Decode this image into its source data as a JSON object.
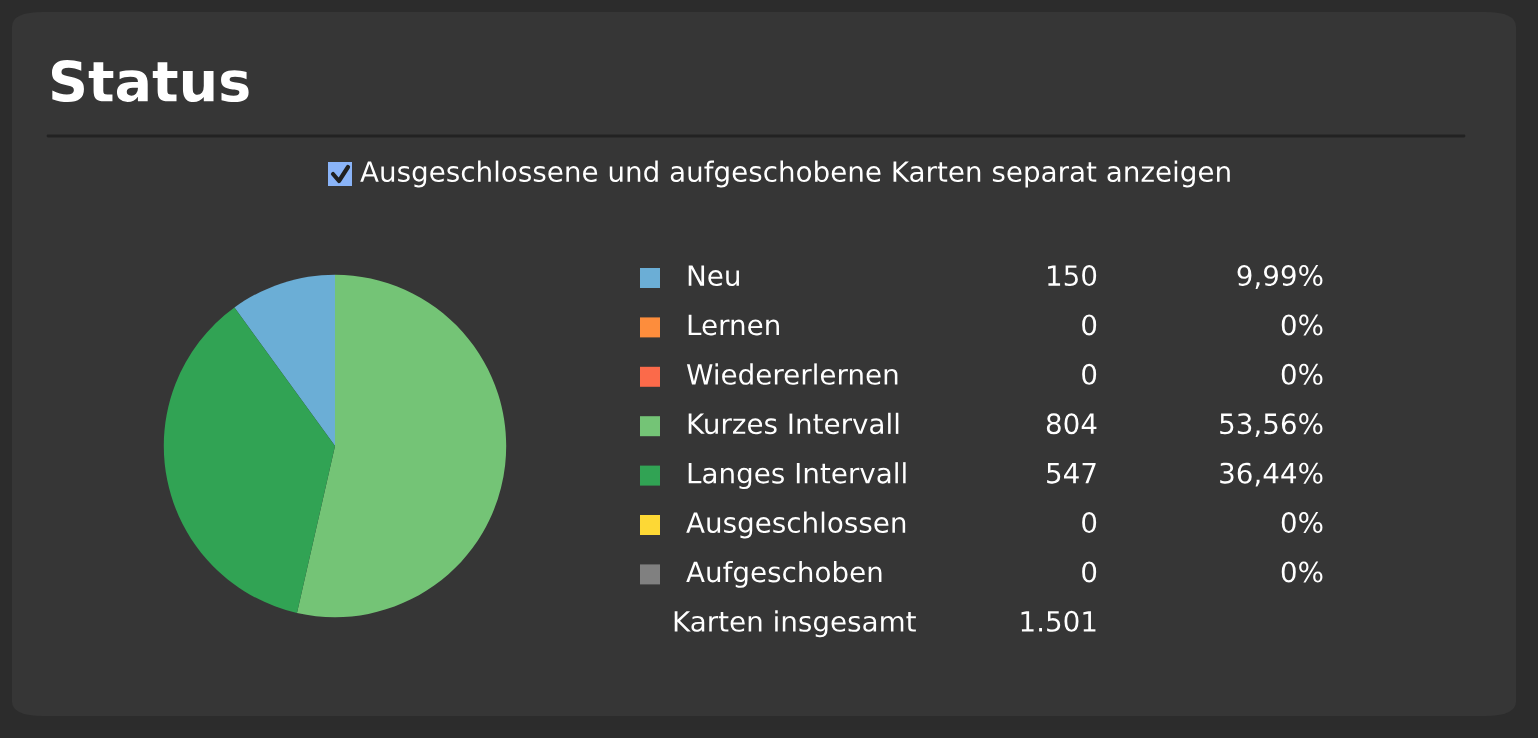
{
  "chart_data": {
    "type": "pie",
    "title": "Status",
    "categories": [
      "Neu",
      "Lernen",
      "Wiedererlernen",
      "Kurzes Intervall",
      "Langes Intervall",
      "Ausgeschlossen",
      "Aufgeschoben"
    ],
    "values": [
      150,
      0,
      0,
      804,
      547,
      0,
      0
    ],
    "colors": [
      "#6baed6",
      "#fd8d3c",
      "#fb6a4a",
      "#74c476",
      "#31a354",
      "#fdd835",
      "#808080"
    ],
    "value_labels": [
      "150",
      "0",
      "0",
      "804",
      "547",
      "0",
      "0"
    ],
    "legend": "right",
    "annotations": [
      "Ausgeschlossene und aufgeschobene Karten separat anzeigen",
      "9,99%",
      "0%",
      "0%",
      "53,56%",
      "36,44%",
      "0%",
      "0%",
      "Karten insgesamt",
      "1.501"
    ]
  }
}
